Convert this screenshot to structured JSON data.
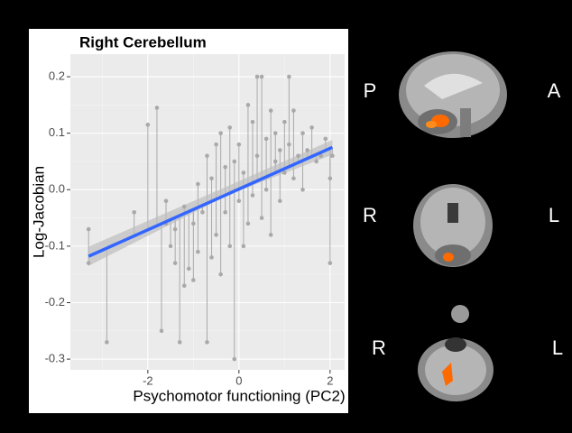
{
  "chart_data": {
    "type": "scatter",
    "title": "Right Cerebellum",
    "xlabel": "Psychomotor functioning (PC2)",
    "ylabel": "Log-Jacobian",
    "xlim": [
      -3.7,
      2.32
    ],
    "ylim": [
      -0.319,
      0.24
    ],
    "xticks": [
      -2,
      0,
      2
    ],
    "yticks": [
      -0.3,
      -0.2,
      -0.1,
      {
        "value": 0,
        "label": "0.0"
      },
      0.1,
      0.2
    ],
    "xminor": [
      -3,
      -1,
      1
    ],
    "yminor": [
      -0.25,
      -0.15,
      -0.05,
      0.05,
      0.15
    ],
    "grid": true,
    "series": [
      {
        "color": "#a9a9a9",
        "x": [
          -3.3,
          -3.3,
          -2.9,
          -2.3,
          -2.0,
          -1.8,
          -1.7,
          -1.6,
          -1.6,
          -1.5,
          -1.4,
          -1.4,
          -1.3,
          -1.2,
          -1.2,
          -1.1,
          -1.0,
          -1.0,
          -0.9,
          -0.9,
          -0.8,
          -0.7,
          -0.7,
          -0.6,
          -0.6,
          -0.5,
          -0.5,
          -0.4,
          -0.4,
          -0.3,
          -0.3,
          -0.2,
          -0.2,
          -0.1,
          -0.1,
          0.0,
          0.0,
          0.1,
          0.1,
          0.2,
          0.2,
          0.3,
          0.3,
          0.4,
          0.4,
          0.5,
          0.5,
          0.6,
          0.6,
          0.7,
          0.7,
          0.8,
          0.8,
          0.9,
          0.9,
          1.0,
          1.0,
          1.1,
          1.1,
          1.2,
          1.2,
          1.3,
          1.4,
          1.4,
          1.5,
          1.6,
          1.7,
          1.8,
          1.9,
          2.0,
          2.0,
          2.05
        ],
        "values": [
          -0.13,
          -0.07,
          -0.27,
          -0.04,
          0.115,
          0.145,
          -0.25,
          -0.02,
          -0.06,
          -0.1,
          -0.07,
          -0.13,
          -0.27,
          -0.03,
          -0.17,
          -0.14,
          -0.06,
          -0.16,
          -0.11,
          0.01,
          -0.04,
          -0.27,
          0.06,
          0.02,
          -0.12,
          0.08,
          -0.08,
          0.1,
          -0.15,
          0.04,
          -0.04,
          0.11,
          -0.1,
          -0.3,
          0.05,
          -0.02,
          0.08,
          0.03,
          -0.1,
          0.15,
          -0.06,
          0.12,
          -0.01,
          0.2,
          0.06,
          0.2,
          -0.05,
          0.09,
          0.0,
          0.14,
          -0.08,
          0.05,
          0.1,
          0.07,
          -0.02,
          0.12,
          0.03,
          0.2,
          0.08,
          0.14,
          0.02,
          0.06,
          0.1,
          0.0,
          0.07,
          0.11,
          0.05,
          0.06,
          0.09,
          -0.13,
          0.02,
          0.06
        ]
      }
    ],
    "fit": {
      "color": "#3366ff",
      "x": [
        -3.3,
        2.05
      ],
      "y": [
        -0.118,
        0.075
      ]
    },
    "fit_band": {
      "color": "#bdbdbd",
      "x": [
        -3.3,
        -0.2,
        2.05
      ],
      "lower": [
        -0.135,
        -0.008,
        0.062
      ],
      "upper": [
        -0.101,
        0.008,
        0.088
      ]
    }
  },
  "brain_panels": [
    {
      "left": "P",
      "right": "A"
    },
    {
      "left": "R",
      "right": "L"
    },
    {
      "left": "R",
      "right": "L"
    }
  ]
}
